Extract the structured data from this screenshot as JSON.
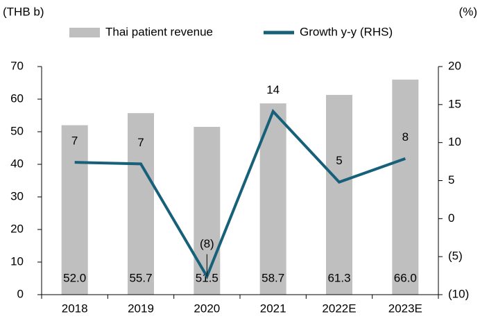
{
  "chart_data": {
    "type": "bar",
    "y_axis_label": "(THB b)",
    "y2_axis_label": "(%)",
    "categories": [
      "2018",
      "2019",
      "2020",
      "2021",
      "2022E",
      "2023E"
    ],
    "series": [
      {
        "name": "Thai patient revenue",
        "color": "#bfbfbf",
        "type": "bar",
        "values": [
          52.0,
          55.7,
          51.5,
          58.7,
          61.3,
          66.0
        ],
        "value_labels": [
          "52.0",
          "55.7",
          "51.5",
          "58.7",
          "61.3",
          "66.0"
        ]
      },
      {
        "name": "Growth y-y (RHS)",
        "color": "#17607a",
        "type": "line",
        "axis": "y2",
        "values": [
          7.4,
          7.2,
          -7.6,
          14.1,
          4.8,
          7.9
        ],
        "value_labels": [
          "7",
          "7",
          "(8)",
          "14",
          "5",
          "8"
        ]
      }
    ],
    "ylim": [
      0,
      70
    ],
    "yticks": [
      0,
      10,
      20,
      30,
      40,
      50,
      60,
      70
    ],
    "y2lim": [
      -10,
      20
    ],
    "y2ticks": [
      {
        "value": -10,
        "label": "(10)"
      },
      {
        "value": -5,
        "label": "(5)"
      },
      0,
      5,
      10,
      15,
      20
    ],
    "legend": "top"
  }
}
